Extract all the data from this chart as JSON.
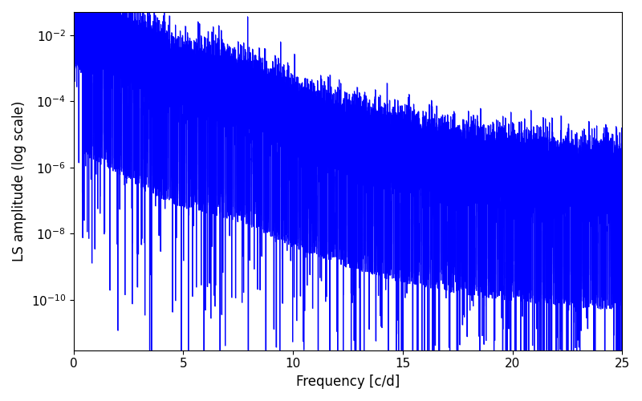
{
  "title": "",
  "xlabel": "Frequency [c/d]",
  "ylabel": "LS amplitude (log scale)",
  "xlim": [
    0,
    25
  ],
  "ymin": 3e-12,
  "ymax": 0.05,
  "line_color": "#0000ff",
  "background_color": "#ffffff",
  "figsize": [
    8.0,
    5.0
  ],
  "dpi": 100,
  "seed": 42,
  "n_points": 50000,
  "freq_max": 25.0,
  "xlabel_fontsize": 12,
  "ylabel_fontsize": 12,
  "tick_fontsize": 11
}
